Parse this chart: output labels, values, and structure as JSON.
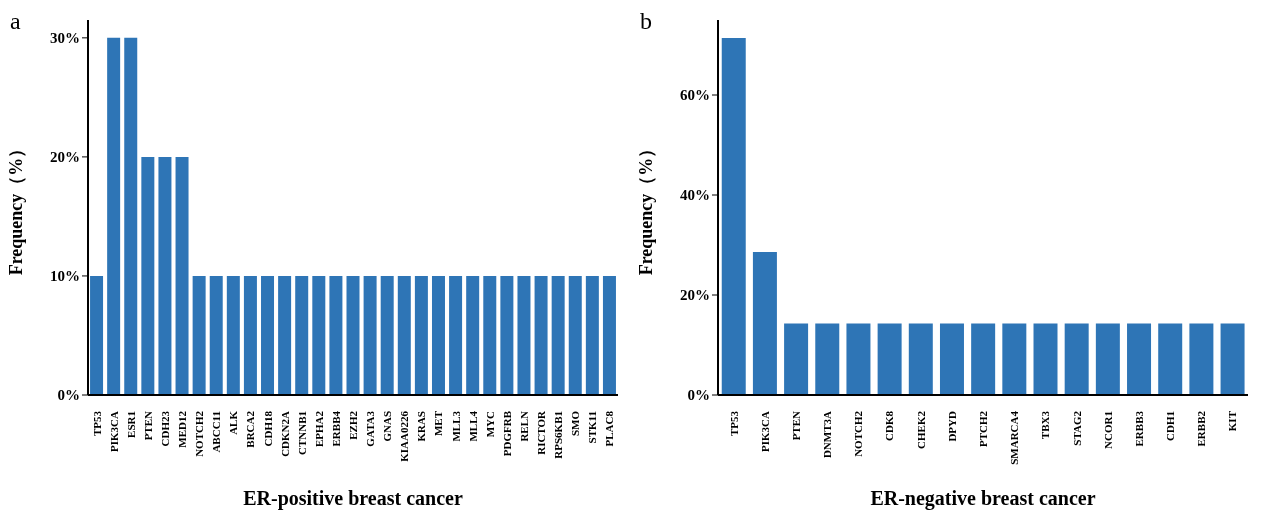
{
  "chart_data": [
    {
      "type": "bar",
      "xlabel": "ER-positive breast cancer",
      "ylabel": "Frequency（%）",
      "annotations": [
        "a"
      ],
      "color": "#2e75b6",
      "categories": [
        "TP53",
        "PIK3CA",
        "ESR1",
        "PTEN",
        "CDH23",
        "MED12",
        "NOTCH2",
        "ABCC11",
        "ALK",
        "BRCA2",
        "CDH18",
        "CDKN2A",
        "CTNNB1",
        "EPHA2",
        "ERBB4",
        "EZH2",
        "GATA3",
        "GNAS",
        "KIAA0226",
        "KRAS",
        "MET",
        "MLL3",
        "MLL4",
        "MYC",
        "PDGFRB",
        "RELN",
        "RICTOR",
        "RPS6KB1",
        "SMO",
        "STK11",
        "PLAC8"
      ],
      "values": [
        10,
        30,
        30,
        20,
        20,
        20,
        10,
        10,
        10,
        10,
        10,
        10,
        10,
        10,
        10,
        10,
        10,
        10,
        10,
        10,
        10,
        10,
        10,
        10,
        10,
        10,
        10,
        10,
        10,
        10,
        10
      ],
      "ylim": [
        0,
        31.5
      ],
      "yticks": [
        {
          "value": 0,
          "label": "0%"
        },
        {
          "value": 10,
          "label": "10%"
        },
        {
          "value": 20,
          "label": "20%"
        },
        {
          "value": 30,
          "label": "30%"
        }
      ]
    },
    {
      "type": "bar",
      "xlabel": "ER-negative breast cancer",
      "ylabel": "Frequency（%）",
      "annotations": [
        "b"
      ],
      "color": "#2e75b6",
      "categories": [
        "TP53",
        "PIK3CA",
        "PTEN",
        "DNMT3A",
        "NOTCH2",
        "CDK8",
        "CHEK2",
        "DPYD",
        "PTCH2",
        "SMARCA4",
        "TBX3",
        "STAG2",
        "NCOR1",
        "ERBB3",
        "CDH1",
        "ERBB2",
        "KIT"
      ],
      "values": [
        71.4,
        28.6,
        14.3,
        14.3,
        14.3,
        14.3,
        14.3,
        14.3,
        14.3,
        14.3,
        14.3,
        14.3,
        14.3,
        14.3,
        14.3,
        14.3,
        14.3
      ],
      "ylim": [
        0,
        75
      ],
      "yticks": [
        {
          "value": 0,
          "label": "0%"
        },
        {
          "value": 20,
          "label": "20%"
        },
        {
          "value": 40,
          "label": "40%"
        },
        {
          "value": 60,
          "label": "60%"
        }
      ]
    }
  ]
}
